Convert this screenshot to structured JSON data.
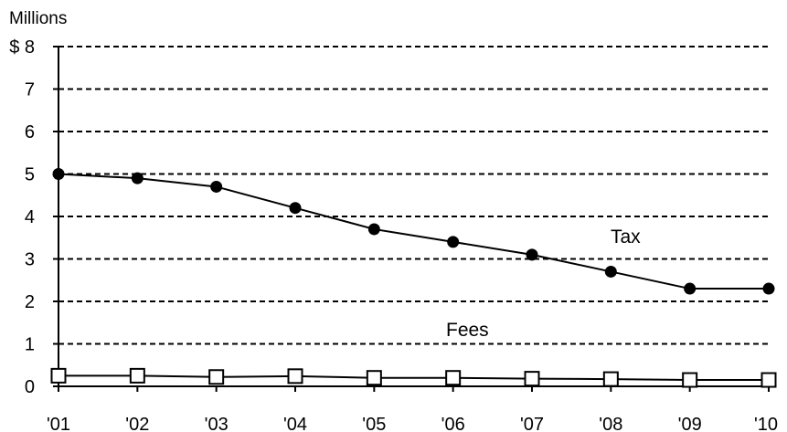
{
  "chart_data": {
    "type": "line",
    "unit_label": "Millions",
    "y_prefix": "$",
    "categories": [
      "'01",
      "'02",
      "'03",
      "'04",
      "'05",
      "'06",
      "'07",
      "'08",
      "'09",
      "'10"
    ],
    "y_ticks": [
      0,
      1,
      2,
      3,
      4,
      5,
      6,
      7,
      8
    ],
    "ylim": [
      0,
      8
    ],
    "grid": "dashed horizontal",
    "series": [
      {
        "name": "Tax",
        "marker": "filled-circle",
        "values": [
          5.0,
          4.9,
          4.7,
          4.2,
          3.7,
          3.4,
          3.1,
          2.7,
          2.3,
          2.3
        ]
      },
      {
        "name": "Fees",
        "marker": "open-square",
        "values": [
          0.25,
          0.25,
          0.22,
          0.24,
          0.2,
          0.2,
          0.18,
          0.17,
          0.15,
          0.15
        ]
      }
    ],
    "colors": {
      "line": "#000000",
      "grid": "#000000",
      "background": "#ffffff"
    }
  }
}
